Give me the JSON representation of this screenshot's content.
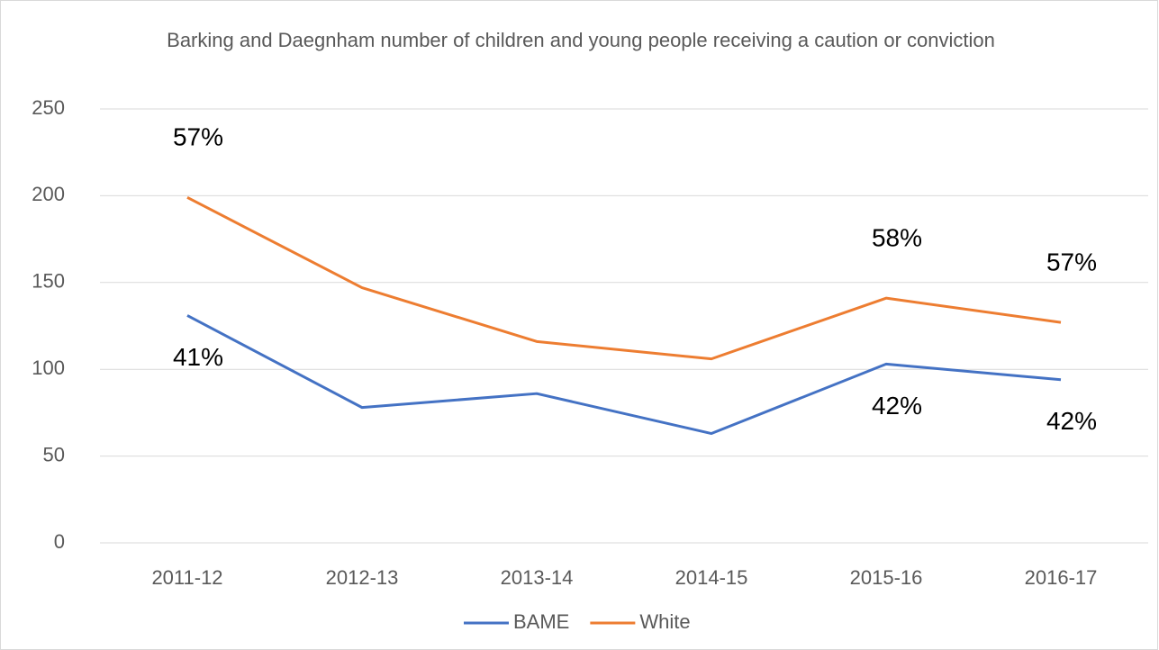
{
  "chart_data": {
    "type": "line",
    "title": "Barking and Daegnham number of children and young people receiving a caution or conviction",
    "categories": [
      "2011-12",
      "2012-13",
      "2013-14",
      "2014-15",
      "2015-16",
      "2016-17"
    ],
    "series": [
      {
        "name": "BAME",
        "color": "#4472c4",
        "values": [
          131,
          78,
          86,
          63,
          103,
          94
        ],
        "annotations": [
          "41%",
          null,
          null,
          null,
          "42%",
          "42%"
        ]
      },
      {
        "name": "White",
        "color": "#ed7d31",
        "values": [
          199,
          147,
          116,
          106,
          141,
          127
        ],
        "annotations": [
          "57%",
          null,
          null,
          null,
          "58%",
          "57%"
        ]
      }
    ],
    "ylim": [
      0,
      250
    ],
    "yticks": [
      0,
      50,
      100,
      150,
      200,
      250
    ],
    "grid": true,
    "legend": "bottom"
  }
}
